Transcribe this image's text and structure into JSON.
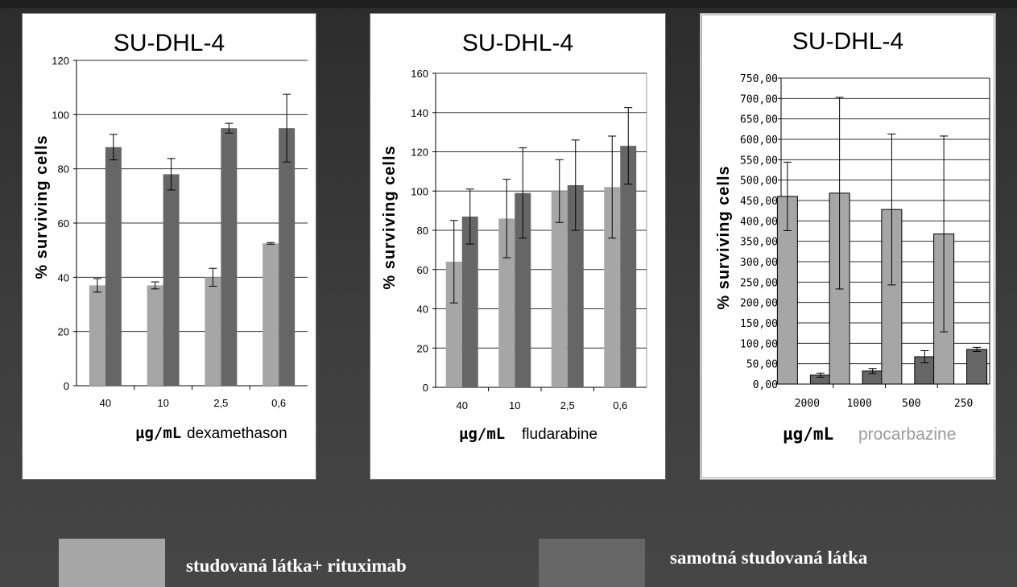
{
  "colors": {
    "with_rituximab": "#a6a6a6",
    "alone": "#666666",
    "procarbazine_label": "#9a9a9a",
    "gridline": "#000000"
  },
  "legend": {
    "items": [
      {
        "label": "studovaná látka+ rituximab",
        "color": "#a6a6a6"
      },
      {
        "label": "samotná studovaná látka",
        "color": "#666666"
      }
    ]
  },
  "chart_data": [
    {
      "type": "bar",
      "title": "SU-DHL-4",
      "ylabel": "% surviving cells",
      "xlabel_unit": "µg/mL",
      "xlabel_drug": "dexamethason",
      "categories": [
        "40",
        "10",
        "2,5",
        "0,6"
      ],
      "ylim": [
        0,
        120
      ],
      "yticks": [
        "0",
        "20",
        "40",
        "60",
        "80",
        "100",
        "120"
      ],
      "grid": true,
      "series": [
        {
          "name": "studovaná látka+ rituximab",
          "values": [
            37,
            37,
            40,
            52.5
          ],
          "errors": [
            2.5,
            1.3,
            3.3,
            0.3
          ]
        },
        {
          "name": "samotná studovaná látka",
          "values": [
            88,
            78,
            95,
            95
          ],
          "errors": [
            4.7,
            5.8,
            1.8,
            12.5
          ]
        }
      ]
    },
    {
      "type": "bar",
      "title": "SU-DHL-4",
      "ylabel": "% surviving cells",
      "xlabel_unit": "µg/mL",
      "xlabel_drug": "fludarabine",
      "categories": [
        "40",
        "10",
        "2,5",
        "0,6"
      ],
      "ylim": [
        0,
        160
      ],
      "yticks": [
        "0",
        "20",
        "40",
        "60",
        "80",
        "100",
        "120",
        "140",
        "160"
      ],
      "grid": true,
      "series": [
        {
          "name": "studovaná látka+ rituximab",
          "values": [
            64,
            86,
            100,
            102
          ],
          "errors": [
            21,
            20,
            16,
            26
          ]
        },
        {
          "name": "samotná studovaná látka",
          "values": [
            87,
            99,
            103,
            123
          ],
          "errors": [
            14,
            23,
            23,
            19.5
          ]
        }
      ]
    },
    {
      "type": "bar",
      "title": "SU-DHL-4",
      "ylabel": "% surviving cells",
      "xlabel_unit": "µg/mL",
      "xlabel_drug": "procarbazine",
      "categories": [
        "2000",
        "1000",
        "500",
        "250"
      ],
      "ylim": [
        0,
        750
      ],
      "yticks": [
        "0,00",
        "50,00",
        "100,00",
        "150,00",
        "200,00",
        "250,00",
        "300,00",
        "350,00",
        "400,00",
        "450,00",
        "500,00",
        "550,00",
        "600,00",
        "650,00",
        "700,00",
        "750,00"
      ],
      "grid": true,
      "series": [
        {
          "name": "studovaná látka+ rituximab",
          "values": [
            460,
            468,
            428,
            368
          ],
          "errors": [
            84,
            235,
            185,
            240
          ]
        },
        {
          "name": "samotná studovaná látka",
          "values": [
            22,
            32,
            67,
            85
          ],
          "errors": [
            5,
            6,
            15,
            5
          ]
        }
      ]
    }
  ]
}
